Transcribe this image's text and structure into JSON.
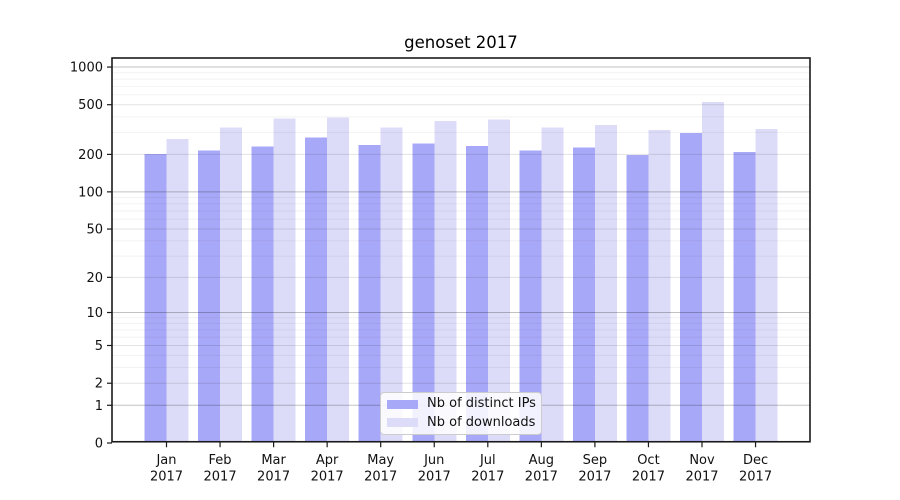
{
  "title": "genoset 2017",
  "chart_data": {
    "type": "bar",
    "title": "genoset 2017",
    "categories": [
      "Jan 2017",
      "Feb 2017",
      "Mar 2017",
      "Apr 2017",
      "May 2017",
      "Jun 2017",
      "Jul 2017",
      "Aug 2017",
      "Sep 2017",
      "Oct 2017",
      "Nov 2017",
      "Dec 2017"
    ],
    "series": [
      {
        "name": "Nb of distinct IPs",
        "color": "#a8a8f8",
        "values": [
          202,
          214,
          231,
          273,
          239,
          245,
          234,
          214,
          227,
          197,
          298,
          209
        ]
      },
      {
        "name": "Nb of downloads",
        "color": "#dcdcf8",
        "values": [
          265,
          330,
          389,
          394,
          328,
          371,
          382,
          328,
          345,
          315,
          528,
          320
        ]
      }
    ],
    "yscale": "log1p",
    "ylim": [
      0,
      1000
    ],
    "yticks": [
      0,
      1,
      2,
      5,
      10,
      20,
      50,
      100,
      200,
      500,
      1000
    ],
    "grid": true,
    "grid_over_bars": true,
    "legend_position": "lower center",
    "frame_color": "#1a1a1a",
    "text_color": "#111111"
  },
  "legend": {
    "items": [
      {
        "label": "Nb of distinct IPs",
        "color": "#a8a8f8"
      },
      {
        "label": "Nb of downloads",
        "color": "#dcdcf8"
      }
    ]
  }
}
